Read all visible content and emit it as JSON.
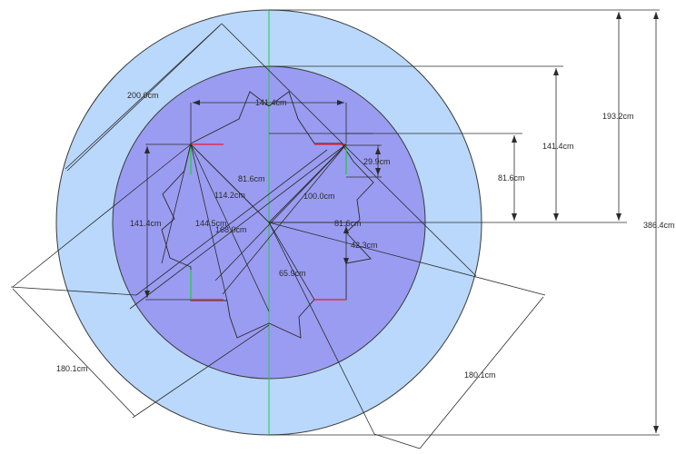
{
  "colors": {
    "outer_circle": "#b9d8fb",
    "inner_circle": "#9a9cf2",
    "outline": "#3a3a3a",
    "axis": "#27c94b",
    "edge_marker": "#e0304a",
    "edge_marker_green": "#27c94b"
  },
  "labels": {
    "outer_diameter": "200.0cm",
    "star_width": "141.4cm",
    "height_193": "193.2cm",
    "height_141": "141.4cm",
    "height_386": "386.4cm",
    "right_81": "81.6cm",
    "tooth_29": "29.9cm",
    "inner_81": "81.6cm",
    "diag_114": "114.2cm",
    "diag_100": "100.0cm",
    "left_141": "141.4cm",
    "diag_144": "144.5cm",
    "diag_168": "168.0cm",
    "mid_81": "81.6cm",
    "seg_42": "42.3cm",
    "seg_65": "65.9cm",
    "bottom_left_180": "180.1cm",
    "bottom_right_180": "180.1cm"
  }
}
